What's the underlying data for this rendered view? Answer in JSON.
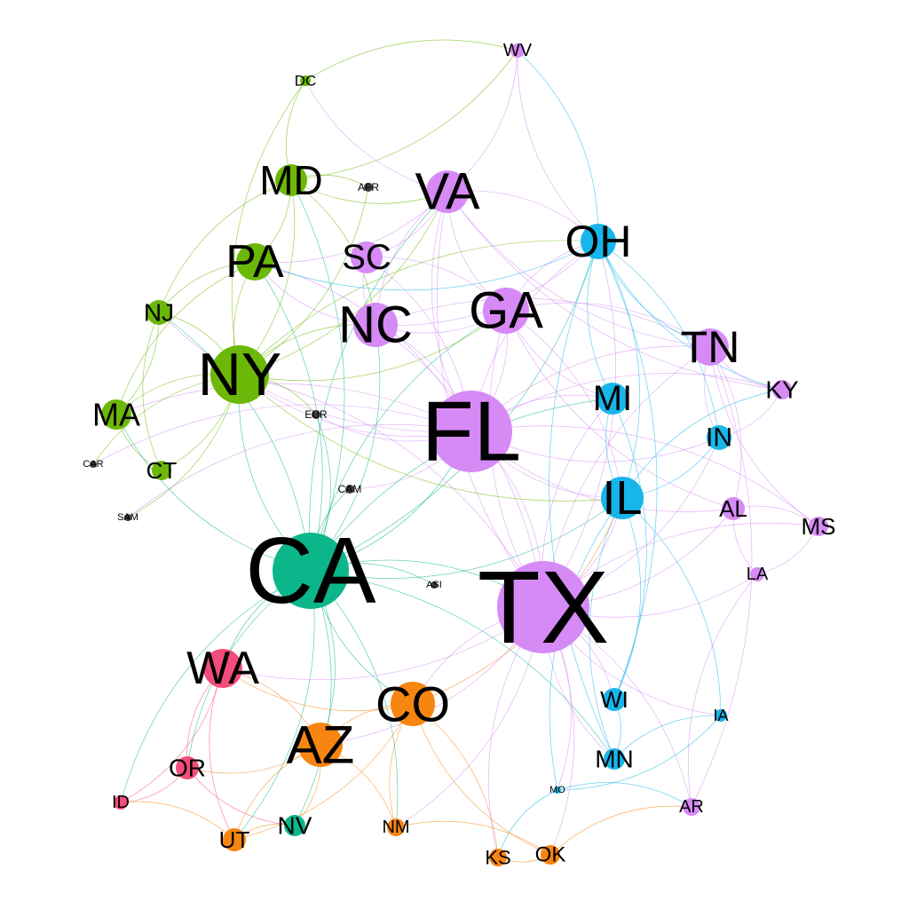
{
  "colors": {
    "northeast": "#6cb808",
    "southeast": "#d68af5",
    "midwest": "#17b5ea",
    "california": "#0bb68a",
    "northwest": "#f24c7a",
    "southwest": "#f78512",
    "external": "#3c3c3c"
  },
  "nodes": [
    {
      "id": "WV",
      "label": "WV",
      "group": "southeast"
    },
    {
      "id": "DC",
      "label": "DC",
      "group": "northeast"
    },
    {
      "id": "MD",
      "label": "MD",
      "group": "northeast"
    },
    {
      "id": "AFR",
      "label": "AFR",
      "group": "external"
    },
    {
      "id": "VA",
      "label": "VA",
      "group": "southeast"
    },
    {
      "id": "OH",
      "label": "OH",
      "group": "midwest"
    },
    {
      "id": "PA",
      "label": "PA",
      "group": "northeast"
    },
    {
      "id": "SC",
      "label": "SC",
      "group": "southeast"
    },
    {
      "id": "NJ",
      "label": "NJ",
      "group": "northeast"
    },
    {
      "id": "NC",
      "label": "NC",
      "group": "southeast"
    },
    {
      "id": "GA",
      "label": "GA",
      "group": "southeast"
    },
    {
      "id": "TN",
      "label": "TN",
      "group": "southeast"
    },
    {
      "id": "NY",
      "label": "NY",
      "group": "northeast"
    },
    {
      "id": "KY",
      "label": "KY",
      "group": "southeast"
    },
    {
      "id": "MI",
      "label": "MI",
      "group": "midwest"
    },
    {
      "id": "MA",
      "label": "MA",
      "group": "northeast"
    },
    {
      "id": "EUR",
      "label": "EUR",
      "group": "external"
    },
    {
      "id": "FL",
      "label": "FL",
      "group": "southeast"
    },
    {
      "id": "IN",
      "label": "IN",
      "group": "midwest"
    },
    {
      "id": "CAR",
      "label": "CAR",
      "group": "external"
    },
    {
      "id": "CT",
      "label": "CT",
      "group": "northeast"
    },
    {
      "id": "CAM",
      "label": "CAM",
      "group": "external"
    },
    {
      "id": "IL",
      "label": "IL",
      "group": "midwest"
    },
    {
      "id": "AL",
      "label": "AL",
      "group": "southeast"
    },
    {
      "id": "SAM",
      "label": "SAM",
      "group": "external"
    },
    {
      "id": "MS",
      "label": "MS",
      "group": "southeast"
    },
    {
      "id": "CA",
      "label": "CA",
      "group": "california"
    },
    {
      "id": "LA",
      "label": "LA",
      "group": "southeast"
    },
    {
      "id": "ASI",
      "label": "ASI",
      "group": "external"
    },
    {
      "id": "TX",
      "label": "TX",
      "group": "southeast"
    },
    {
      "id": "WA",
      "label": "WA",
      "group": "northwest"
    },
    {
      "id": "CO",
      "label": "CO",
      "group": "southwest"
    },
    {
      "id": "WI",
      "label": "WI",
      "group": "midwest"
    },
    {
      "id": "IA",
      "label": "IA",
      "group": "midwest"
    },
    {
      "id": "AZ",
      "label": "AZ",
      "group": "southwest"
    },
    {
      "id": "OR",
      "label": "OR",
      "group": "northwest"
    },
    {
      "id": "MN",
      "label": "MN",
      "group": "midwest"
    },
    {
      "id": "MO",
      "label": "MO",
      "group": "midwest"
    },
    {
      "id": "ID",
      "label": "ID",
      "group": "northwest"
    },
    {
      "id": "AR",
      "label": "AR",
      "group": "southeast"
    },
    {
      "id": "UT",
      "label": "UT",
      "group": "southwest"
    },
    {
      "id": "NV",
      "label": "NV",
      "group": "california"
    },
    {
      "id": "NM",
      "label": "NM",
      "group": "southwest"
    },
    {
      "id": "KS",
      "label": "KS",
      "group": "southwest"
    },
    {
      "id": "OK",
      "label": "OK",
      "group": "southwest"
    }
  ]
}
